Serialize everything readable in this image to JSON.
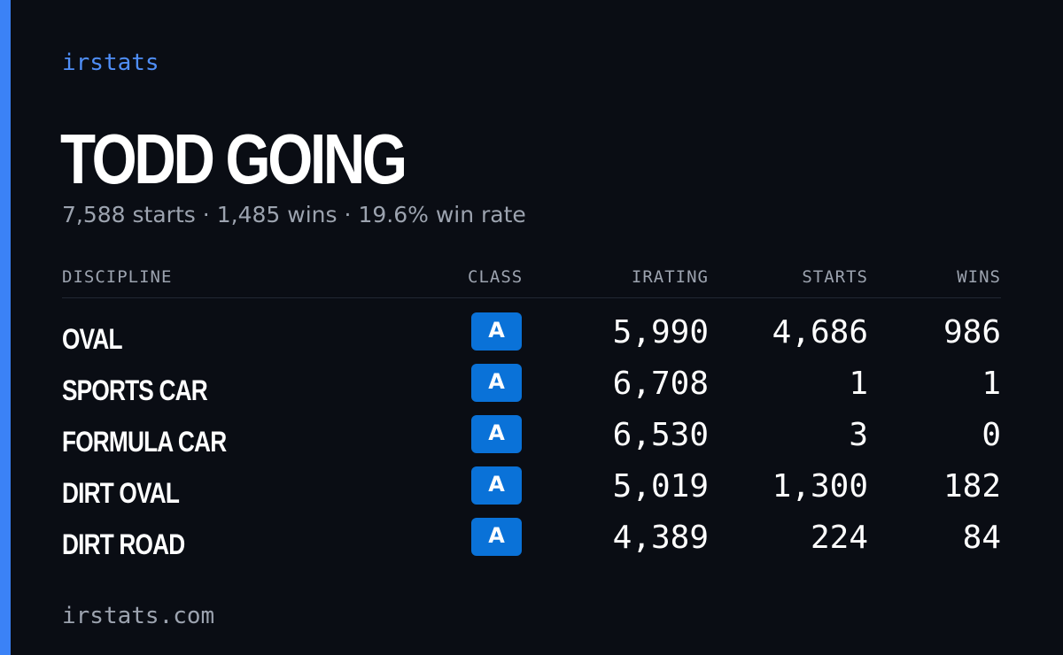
{
  "brand": "irstats",
  "driver": {
    "name": "TODD GOING",
    "starts": "7,588 starts",
    "wins": "1,485 wins",
    "win_rate": "19.6% win rate",
    "separator": "·"
  },
  "table": {
    "headers": {
      "discipline": "DISCIPLINE",
      "class": "CLASS",
      "irating": "IRATING",
      "starts": "STARTS",
      "wins": "WINS"
    },
    "rows": [
      {
        "discipline": "OVAL",
        "class": "A",
        "irating": "5,990",
        "starts": "4,686",
        "wins": "986"
      },
      {
        "discipline": "SPORTS CAR",
        "class": "A",
        "irating": "6,708",
        "starts": "1",
        "wins": "1"
      },
      {
        "discipline": "FORMULA CAR",
        "class": "A",
        "irating": "6,530",
        "starts": "3",
        "wins": "0"
      },
      {
        "discipline": "DIRT OVAL",
        "class": "A",
        "irating": "5,019",
        "starts": "1,300",
        "wins": "182"
      },
      {
        "discipline": "DIRT ROAD",
        "class": "A",
        "irating": "4,389",
        "starts": "224",
        "wins": "84"
      }
    ]
  },
  "footer": "irstats.com",
  "colors": {
    "background": "#0a0d14",
    "accent": "#3b82f6",
    "brand": "#4f8ef7",
    "badge": "#0a72d8",
    "muted": "#9ca3af"
  }
}
